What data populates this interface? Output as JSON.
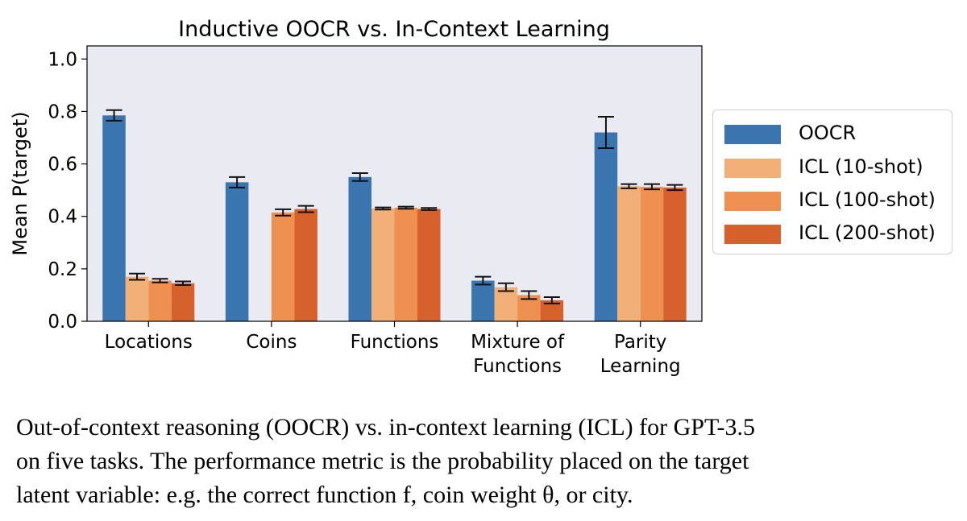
{
  "chart_data": {
    "type": "bar",
    "title": "Inductive OOCR vs. In-Context Learning",
    "xlabel": "",
    "ylabel": "Mean P(target)",
    "ylim": [
      0.0,
      1.05
    ],
    "yticks": [
      "0.0",
      "0.2",
      "0.4",
      "0.6",
      "0.8",
      "1.0"
    ],
    "ytick_values": [
      0.0,
      0.2,
      0.4,
      0.6,
      0.8,
      1.0
    ],
    "categories": [
      [
        "Locations"
      ],
      [
        "Coins"
      ],
      [
        "Functions"
      ],
      [
        "Mixture of",
        "Functions"
      ],
      [
        "Parity",
        "Learning"
      ]
    ],
    "series": [
      {
        "name": "OOCR",
        "color": "#3b75af",
        "values": [
          0.785,
          0.53,
          0.55,
          0.155,
          0.72
        ],
        "errors": [
          0.02,
          0.02,
          0.015,
          0.015,
          0.06
        ]
      },
      {
        "name": "ICL (10-shot)",
        "color": "#f2b079",
        "values": [
          0.17,
          null,
          0.43,
          0.13,
          0.515
        ],
        "errors": [
          0.012,
          null,
          0.004,
          0.015,
          0.008
        ]
      },
      {
        "name": "ICL (100-shot)",
        "color": "#ee9150",
        "values": [
          0.155,
          0.415,
          0.433,
          0.1,
          0.513
        ],
        "errors": [
          0.007,
          0.012,
          0.004,
          0.015,
          0.01
        ]
      },
      {
        "name": "ICL (200-shot)",
        "color": "#d6612c",
        "values": [
          0.145,
          0.428,
          0.428,
          0.08,
          0.51
        ],
        "errors": [
          0.007,
          0.012,
          0.004,
          0.012,
          0.01
        ]
      }
    ],
    "legend_position": "right"
  },
  "caption": {
    "lines": [
      "Out-of-context reasoning (OOCR) vs. in-context learning (ICL) for GPT-3.5",
      "on five tasks. The performance metric is the probability placed on the target",
      "latent variable: e.g. the correct function f, coin weight θ, or city."
    ]
  }
}
